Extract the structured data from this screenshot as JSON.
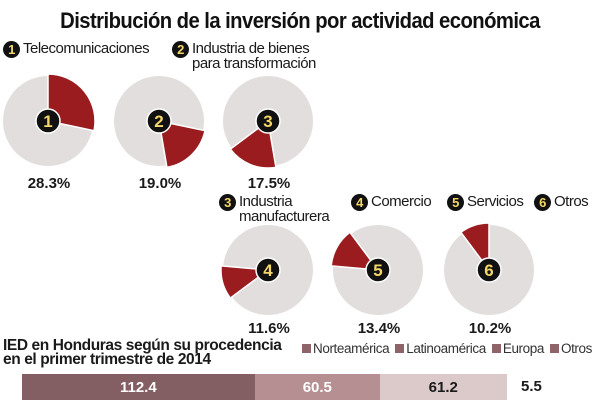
{
  "title": "Distribución de la inversión por actividad económica",
  "colors": {
    "wedge": "#9b1c1f",
    "pie_bg": "#e3dede",
    "badge_bg": "#111111",
    "badge_fg": "#f3d768",
    "bar": [
      "#835e62",
      "#b58f92",
      "#dccacb",
      "#ffffff"
    ]
  },
  "categories": [
    {
      "num": "1",
      "label": "Telecomunicaciones"
    },
    {
      "num": "2",
      "label": "Industria de bienes\npara transformación"
    },
    {
      "num": "3",
      "label": "Industria\nmanufacturera"
    },
    {
      "num": "4",
      "label": "Comercio"
    },
    {
      "num": "5",
      "label": "Servicios"
    },
    {
      "num": "6",
      "label": "Otros"
    }
  ],
  "chart_data": [
    {
      "type": "pie",
      "title": "Distribución de la inversión por actividad económica",
      "categories": [
        "Telecomunicaciones",
        "Industria de bienes para transformación",
        "Industria manufacturera",
        "Comercio",
        "Servicios",
        "Otros"
      ],
      "values": [
        28.3,
        19.0,
        17.5,
        11.6,
        13.4,
        10.2
      ],
      "value_labels": [
        "28.3%",
        "19.0%",
        "17.5%",
        "11.6%",
        "13.4%",
        "10.2%"
      ],
      "pie_badges": [
        "1",
        "2",
        "3",
        "4",
        "5",
        "6"
      ],
      "unit": "%"
    },
    {
      "type": "bar",
      "orientation": "horizontal-stacked",
      "title": "IED en Honduras según su procedencia\nen el primer trimestre de 2014",
      "legend": [
        "Norteamérica",
        "Latinoamérica",
        "Europa",
        "Otros"
      ],
      "legend_position": "top-right",
      "values": [
        112.4,
        60.5,
        61.2,
        5.5
      ],
      "value_labels": [
        "112.4",
        "60.5",
        "61.2",
        "5.5"
      ]
    }
  ]
}
